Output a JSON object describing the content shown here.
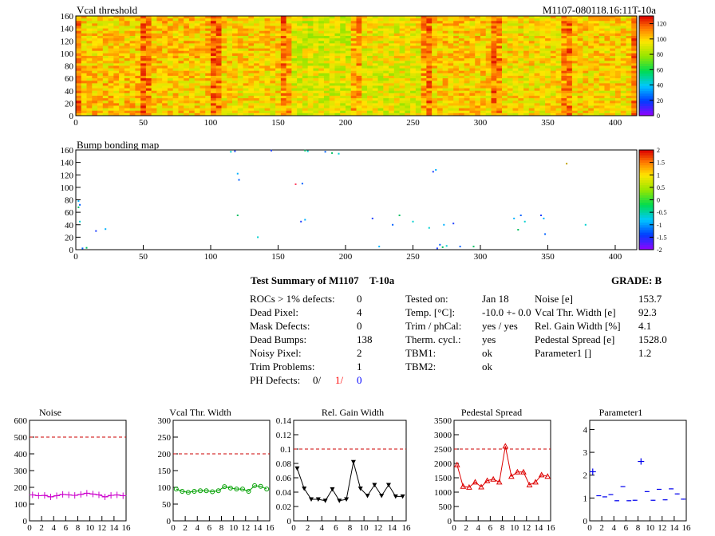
{
  "header": {
    "map_title": "Vcal threshold",
    "module_id": "M1107-080118.16:11T-10a",
    "bump_title": "Bump bonding map"
  },
  "colors": {
    "cut_line": "#cc0000",
    "noise": "#cc00cc",
    "vcal": "#00a000",
    "gain": "#000000",
    "ped": "#dd0000",
    "param": "#0000ee",
    "ph_red": "#ff0000",
    "ph_blue": "#0000ff"
  },
  "summary": {
    "title": "Test Summary of M1107",
    "temp_tag": "T-10a",
    "grade": "GRADE:  B",
    "left": [
      {
        "label": "ROCs > 1% defects:",
        "value": "0"
      },
      {
        "label": "Dead Pixel:",
        "value": "4"
      },
      {
        "label": "Mask Defects:",
        "value": "0"
      },
      {
        "label": "Dead Bumps:",
        "value": "138"
      },
      {
        "label": "Noisy Pixel:",
        "value": "2"
      },
      {
        "label": "Trim Problems:",
        "value": "1"
      }
    ],
    "ph_defects": {
      "label": "PH Defects:",
      "v1": "0/",
      "v2": "1/",
      "v3": "0"
    },
    "middle": [
      {
        "label": "Tested on:",
        "value": "Jan 18"
      },
      {
        "label": "Temp. [°C]:",
        "value": "-10.0 +- 0.0"
      },
      {
        "label": "Trim / phCal:",
        "value": "yes / yes"
      },
      {
        "label": "Therm. cycl.:",
        "value": "yes"
      },
      {
        "label": "TBM1:",
        "value": "ok"
      },
      {
        "label": "TBM2:",
        "value": "ok"
      }
    ],
    "right": [
      {
        "label": "Noise [e]",
        "value": "153.7"
      },
      {
        "label": "Vcal Thr. Width [e]",
        "value": "92.3"
      },
      {
        "label": "Rel. Gain Width [%]",
        "value": "4.1"
      },
      {
        "label": "Pedestal Spread [e]",
        "value": "1528.0"
      },
      {
        "label": "Parameter1 []",
        "value": "1.2"
      }
    ]
  },
  "chart_data": [
    {
      "type": "heatmap",
      "title": "Vcal threshold",
      "xlim": [
        0,
        416
      ],
      "ylim": [
        0,
        160
      ],
      "xticks": [
        0,
        50,
        100,
        150,
        200,
        250,
        300,
        350,
        400
      ],
      "yticks": [
        0,
        20,
        40,
        60,
        80,
        100,
        120,
        140,
        160
      ],
      "zlim": [
        0,
        130
      ],
      "zticks": [
        0,
        20,
        40,
        60,
        80,
        100,
        120
      ],
      "roc_mean_values": [
        [
          100,
          102,
          100,
          90,
          95,
          101,
          98,
          100
        ],
        [
          102,
          100,
          98,
          92,
          92,
          100,
          97,
          98
        ]
      ]
    },
    {
      "type": "scatter",
      "title": "Bump bonding map",
      "xlim": [
        0,
        416
      ],
      "ylim": [
        0,
        160
      ],
      "xticks": [
        0,
        50,
        100,
        150,
        200,
        250,
        300,
        350,
        400
      ],
      "yticks": [
        0,
        20,
        40,
        60,
        80,
        100,
        120,
        140,
        160
      ],
      "zlim": [
        -2,
        2
      ],
      "zticks": [
        -2,
        -1.5,
        -1,
        -0.5,
        0,
        0.5,
        1,
        1.5,
        2
      ],
      "points": [
        [
          2,
          78
        ],
        [
          3,
          72
        ],
        [
          2,
          68
        ],
        [
          3,
          45
        ],
        [
          15,
          30
        ],
        [
          22,
          33
        ],
        [
          5,
          2
        ],
        [
          8,
          3
        ],
        [
          115,
          157
        ],
        [
          118,
          158
        ],
        [
          120,
          122
        ],
        [
          121,
          112
        ],
        [
          120,
          55
        ],
        [
          135,
          20
        ],
        [
          145,
          159
        ],
        [
          163,
          105
        ],
        [
          168,
          106
        ],
        [
          170,
          159
        ],
        [
          172,
          158
        ],
        [
          167,
          45
        ],
        [
          170,
          48
        ],
        [
          185,
          157
        ],
        [
          190,
          155
        ],
        [
          195,
          154
        ],
        [
          220,
          50
        ],
        [
          225,
          5
        ],
        [
          235,
          40
        ],
        [
          240,
          55
        ],
        [
          250,
          45
        ],
        [
          265,
          125
        ],
        [
          267,
          128
        ],
        [
          270,
          8
        ],
        [
          272,
          4
        ],
        [
          275,
          6
        ],
        [
          268,
          2
        ],
        [
          273,
          40
        ],
        [
          285,
          5
        ],
        [
          295,
          5
        ],
        [
          262,
          35
        ],
        [
          280,
          42
        ],
        [
          325,
          50
        ],
        [
          330,
          55
        ],
        [
          328,
          32
        ],
        [
          333,
          45
        ],
        [
          345,
          55
        ],
        [
          347,
          50
        ],
        [
          348,
          25
        ],
        [
          364,
          138
        ],
        [
          378,
          40
        ]
      ]
    },
    {
      "type": "line",
      "title": "Noise",
      "xlim": [
        0,
        16
      ],
      "ylim": [
        0,
        600
      ],
      "xticks": [
        0,
        2,
        4,
        6,
        8,
        10,
        12,
        14,
        16
      ],
      "yticks": [
        0,
        100,
        200,
        300,
        400,
        500,
        600
      ],
      "cut": 500,
      "x": [
        0.5,
        1.5,
        2.5,
        3.5,
        4.5,
        5.5,
        6.5,
        7.5,
        8.5,
        9.5,
        10.5,
        11.5,
        12.5,
        13.5,
        14.5,
        15.5
      ],
      "values": [
        155,
        150,
        152,
        143,
        150,
        158,
        155,
        152,
        158,
        165,
        160,
        155,
        143,
        152,
        155,
        150
      ],
      "marker": "cross"
    },
    {
      "type": "line",
      "title": "Vcal Thr. Width",
      "xlim": [
        0,
        16
      ],
      "ylim": [
        0,
        300
      ],
      "xticks": [
        0,
        2,
        4,
        6,
        8,
        10,
        12,
        14,
        16
      ],
      "yticks": [
        0,
        50,
        100,
        150,
        200,
        250,
        300
      ],
      "cut": 200,
      "x": [
        0.5,
        1.5,
        2.5,
        3.5,
        4.5,
        5.5,
        6.5,
        7.5,
        8.5,
        9.5,
        10.5,
        11.5,
        12.5,
        13.5,
        14.5,
        15.5
      ],
      "values": [
        95,
        88,
        85,
        88,
        90,
        90,
        87,
        90,
        102,
        98,
        95,
        95,
        88,
        105,
        103,
        95
      ],
      "marker": "circle"
    },
    {
      "type": "line",
      "title": "Rel. Gain Width",
      "xlim": [
        0,
        16
      ],
      "ylim": [
        0,
        0.14
      ],
      "xticks": [
        0,
        2,
        4,
        6,
        8,
        10,
        12,
        14,
        16
      ],
      "yticks": [
        0,
        0.02,
        0.04,
        0.06,
        0.08,
        0.1,
        0.12,
        0.14
      ],
      "cut": 0.1,
      "x": [
        0.5,
        1.5,
        2.5,
        3.5,
        4.5,
        5.5,
        6.5,
        7.5,
        8.5,
        9.5,
        10.5,
        11.5,
        12.5,
        13.5,
        14.5,
        15.5
      ],
      "values": [
        0.073,
        0.045,
        0.03,
        0.03,
        0.028,
        0.044,
        0.028,
        0.03,
        0.082,
        0.045,
        0.035,
        0.05,
        0.035,
        0.05,
        0.034,
        0.034
      ],
      "marker": "triangle-down"
    },
    {
      "type": "line",
      "title": "Pedestal Spread",
      "xlim": [
        0,
        16
      ],
      "ylim": [
        0,
        3500
      ],
      "xticks": [
        0,
        2,
        4,
        6,
        8,
        10,
        12,
        14,
        16
      ],
      "yticks": [
        0,
        500,
        1000,
        1500,
        2000,
        2500,
        3000,
        3500
      ],
      "cut": 2500,
      "x": [
        0.5,
        1.5,
        2.5,
        3.5,
        4.5,
        5.5,
        6.5,
        7.5,
        8.5,
        9.5,
        10.5,
        11.5,
        12.5,
        13.5,
        14.5,
        15.5
      ],
      "values": [
        1950,
        1200,
        1170,
        1350,
        1180,
        1400,
        1450,
        1350,
        2600,
        1550,
        1700,
        1700,
        1250,
        1350,
        1600,
        1550
      ],
      "marker": "triangle-up"
    },
    {
      "type": "scatter",
      "title": "Parameter1",
      "xlim": [
        0,
        16
      ],
      "ylim": [
        0,
        4.4
      ],
      "xticks": [
        0,
        2,
        4,
        6,
        8,
        10,
        12,
        14,
        16
      ],
      "yticks": [
        0,
        1,
        2,
        3,
        4
      ],
      "x": [
        0.5,
        1.5,
        2.5,
        3.5,
        4.5,
        5.5,
        6.5,
        7.5,
        8.5,
        9.5,
        10.5,
        11.5,
        12.5,
        13.5,
        14.5,
        15.5
      ],
      "values": [
        2.15,
        1.1,
        1.05,
        1.15,
        0.88,
        1.5,
        0.88,
        0.9,
        2.6,
        1.28,
        0.9,
        1.38,
        0.92,
        1.4,
        1.18,
        0.95
      ],
      "marker": "plus"
    }
  ]
}
